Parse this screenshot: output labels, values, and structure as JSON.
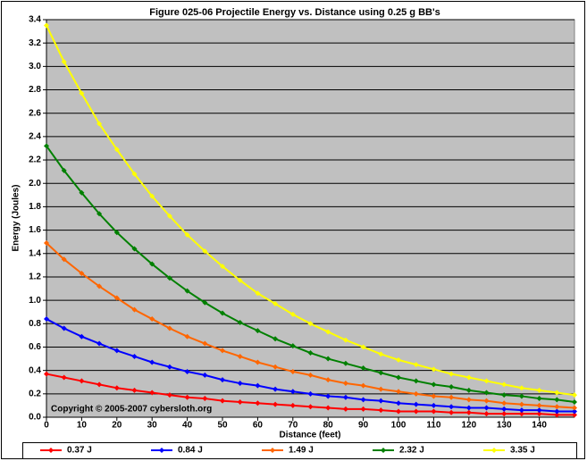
{
  "chart_data": {
    "type": "line",
    "title": "Figure 025-06  Projectile Energy vs. Distance using 0.25 g BB's",
    "x_label": "Distance (feet)",
    "y_label": "Energy (Joules)",
    "annotation": "Copyright © 2005-2007 cybersloth.org",
    "x": [
      0,
      5,
      10,
      15,
      20,
      25,
      30,
      35,
      40,
      45,
      50,
      55,
      60,
      65,
      70,
      75,
      80,
      85,
      90,
      95,
      100,
      105,
      110,
      115,
      120,
      125,
      130,
      135,
      140,
      145,
      150
    ],
    "series": [
      {
        "name": "0.37 J",
        "color": "#ff0000",
        "values": [
          0.37,
          0.34,
          0.31,
          0.28,
          0.25,
          0.23,
          0.21,
          0.19,
          0.17,
          0.16,
          0.14,
          0.13,
          0.12,
          0.11,
          0.1,
          0.09,
          0.08,
          0.07,
          0.07,
          0.06,
          0.05,
          0.05,
          0.05,
          0.04,
          0.04,
          0.03,
          0.03,
          0.03,
          0.03,
          0.02,
          0.02
        ]
      },
      {
        "name": "0.84 J",
        "color": "#0000ff",
        "values": [
          0.84,
          0.76,
          0.69,
          0.63,
          0.57,
          0.52,
          0.47,
          0.43,
          0.39,
          0.36,
          0.32,
          0.29,
          0.27,
          0.24,
          0.22,
          0.2,
          0.18,
          0.17,
          0.15,
          0.14,
          0.12,
          0.11,
          0.1,
          0.09,
          0.08,
          0.08,
          0.07,
          0.06,
          0.06,
          0.05,
          0.05
        ]
      },
      {
        "name": "1.49 J",
        "color": "#ff6600",
        "values": [
          1.49,
          1.35,
          1.23,
          1.12,
          1.02,
          0.92,
          0.84,
          0.76,
          0.69,
          0.63,
          0.57,
          0.52,
          0.47,
          0.43,
          0.39,
          0.36,
          0.32,
          0.29,
          0.27,
          0.24,
          0.22,
          0.2,
          0.18,
          0.17,
          0.15,
          0.14,
          0.12,
          0.11,
          0.1,
          0.09,
          0.08
        ]
      },
      {
        "name": "2.32 J",
        "color": "#008000",
        "values": [
          2.32,
          2.11,
          1.92,
          1.74,
          1.58,
          1.44,
          1.31,
          1.19,
          1.08,
          0.98,
          0.89,
          0.81,
          0.74,
          0.67,
          0.61,
          0.55,
          0.5,
          0.46,
          0.42,
          0.38,
          0.34,
          0.31,
          0.28,
          0.26,
          0.23,
          0.21,
          0.19,
          0.18,
          0.16,
          0.15,
          0.13
        ]
      },
      {
        "name": "3.35 J",
        "color": "#ffff00",
        "values": [
          3.35,
          3.04,
          2.77,
          2.51,
          2.29,
          2.08,
          1.89,
          1.72,
          1.56,
          1.42,
          1.29,
          1.17,
          1.06,
          0.97,
          0.88,
          0.8,
          0.73,
          0.66,
          0.6,
          0.54,
          0.49,
          0.45,
          0.41,
          0.37,
          0.34,
          0.31,
          0.28,
          0.25,
          0.23,
          0.21,
          0.19
        ]
      }
    ],
    "xlim": [
      0,
      150
    ],
    "xticks": [
      0,
      10,
      20,
      30,
      40,
      50,
      60,
      70,
      80,
      90,
      100,
      110,
      120,
      130,
      140
    ],
    "ylim": [
      0,
      3.4
    ],
    "yticks": [
      {
        "value": 0,
        "label": "0.0"
      },
      {
        "value": 0.2,
        "label": "0.2"
      },
      {
        "value": 0.4,
        "label": "0.4"
      },
      {
        "value": 0.6,
        "label": "0.6"
      },
      {
        "value": 0.8,
        "label": "0.8"
      },
      {
        "value": 1,
        "label": "1.0"
      },
      {
        "value": 1.2,
        "label": "1.2"
      },
      {
        "value": 1.4,
        "label": "1.4"
      },
      {
        "value": 1.6,
        "label": "1.6"
      },
      {
        "value": 1.8,
        "label": "1.8"
      },
      {
        "value": 2,
        "label": "2.0"
      },
      {
        "value": 2.2,
        "label": "2.2"
      },
      {
        "value": 2.4,
        "label": "2.4"
      },
      {
        "value": 2.6,
        "label": "2.6"
      },
      {
        "value": 2.8,
        "label": "2.8"
      },
      {
        "value": 3,
        "label": "3.0"
      },
      {
        "value": 3.2,
        "label": "3.2"
      },
      {
        "value": 3.4,
        "label": "3.4"
      }
    ],
    "grid": true,
    "plot_background": "#c0c0c0",
    "legend": "bottom"
  }
}
